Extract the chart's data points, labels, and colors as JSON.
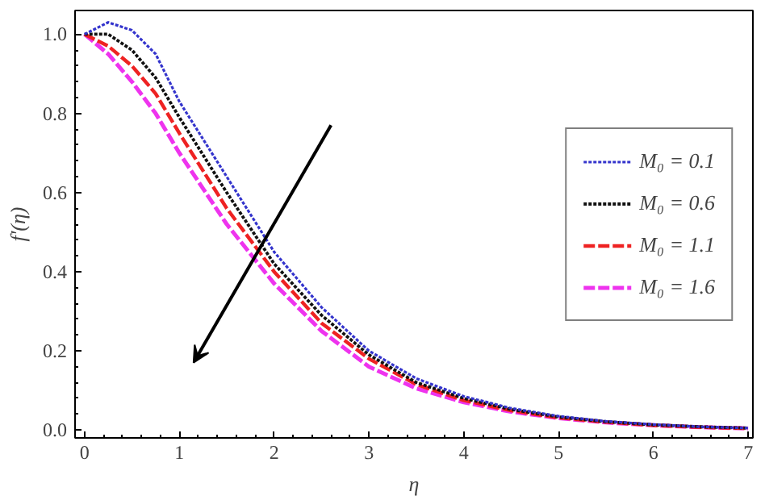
{
  "chart_data": {
    "type": "line",
    "xlabel": "η",
    "ylabel": "f'(η)",
    "x": [
      0,
      0.25,
      0.5,
      0.75,
      1,
      1.5,
      2,
      2.5,
      3,
      3.5,
      4,
      4.5,
      5,
      5.5,
      6,
      6.5,
      7
    ],
    "series": [
      {
        "name": "M₀ = 0.1",
        "color": "#3333cc",
        "line_style": "dotted",
        "values": [
          1.0,
          1.03,
          1.01,
          0.95,
          0.83,
          0.64,
          0.45,
          0.31,
          0.2,
          0.13,
          0.085,
          0.055,
          0.035,
          0.022,
          0.014,
          0.008,
          0.005
        ]
      },
      {
        "name": "M₀ = 0.6",
        "color": "#111111",
        "line_style": "dotted",
        "values": [
          1.0,
          1.0,
          0.96,
          0.89,
          0.79,
          0.6,
          0.42,
          0.29,
          0.19,
          0.12,
          0.08,
          0.052,
          0.033,
          0.021,
          0.013,
          0.008,
          0.005
        ]
      },
      {
        "name": "M₀ = 1.1",
        "color": "#ee2222",
        "line_style": "dashed",
        "values": [
          1.0,
          0.97,
          0.92,
          0.85,
          0.75,
          0.56,
          0.4,
          0.27,
          0.18,
          0.115,
          0.075,
          0.049,
          0.031,
          0.02,
          0.012,
          0.007,
          0.004
        ]
      },
      {
        "name": "M₀ = 1.6",
        "color": "#ee33ee",
        "line_style": "dashed",
        "values": [
          1.0,
          0.95,
          0.88,
          0.8,
          0.7,
          0.52,
          0.37,
          0.25,
          0.16,
          0.105,
          0.07,
          0.046,
          0.03,
          0.019,
          0.012,
          0.007,
          0.004
        ]
      }
    ],
    "xlim": [
      -0.1,
      7.05
    ],
    "ylim": [
      -0.02,
      1.06
    ],
    "xticks": [
      0,
      1,
      2,
      3,
      4,
      5,
      6,
      7
    ],
    "yticks": [
      {
        "value": 0,
        "label": "0.0"
      },
      0.2,
      0.4,
      0.6,
      0.8,
      {
        "value": 1,
        "label": "1.0"
      }
    ],
    "grid": false,
    "legend": "right",
    "marker": "none"
  }
}
